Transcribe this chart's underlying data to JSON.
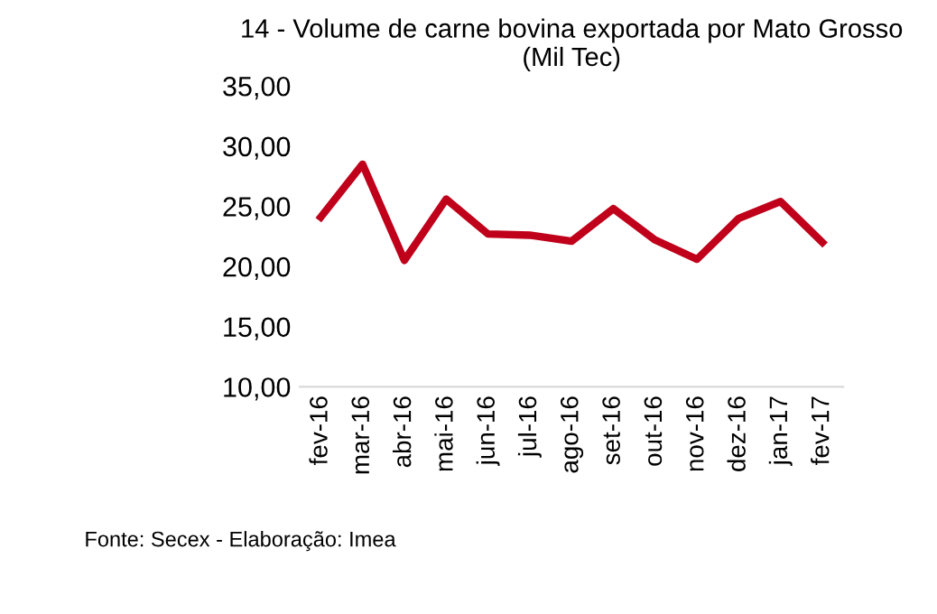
{
  "chart_data": {
    "type": "line",
    "title": "14 - Volume de carne bovina exportada por Mato Grosso\n(Mil Tec)",
    "categories": [
      "fev-16",
      "mar-16",
      "abr-16",
      "mai-16",
      "jun-16",
      "jul-16",
      "ago-16",
      "set-16",
      "out-16",
      "nov-16",
      "dez-16",
      "jan-17",
      "fev-17"
    ],
    "series": [
      {
        "color": "#c0001a",
        "values": [
          24.1,
          28.5,
          20.5,
          25.6,
          22.7,
          22.6,
          22.1,
          24.8,
          22.2,
          20.6,
          24.0,
          25.4,
          22.0
        ]
      }
    ],
    "ylim": [
      10,
      35
    ],
    "yticks": [
      {
        "value": 10,
        "label": "10,00"
      },
      {
        "value": 15,
        "label": "15,00"
      },
      {
        "value": 20,
        "label": "20,00"
      },
      {
        "value": 25,
        "label": "25,00"
      },
      {
        "value": 30,
        "label": "30,00"
      },
      {
        "value": 35,
        "label": "35,00"
      }
    ],
    "grid": false,
    "legend": false,
    "marker": "none",
    "line_style": "solid",
    "annotations": [
      "Fonte: Secex - Elaboração: Imea"
    ]
  }
}
